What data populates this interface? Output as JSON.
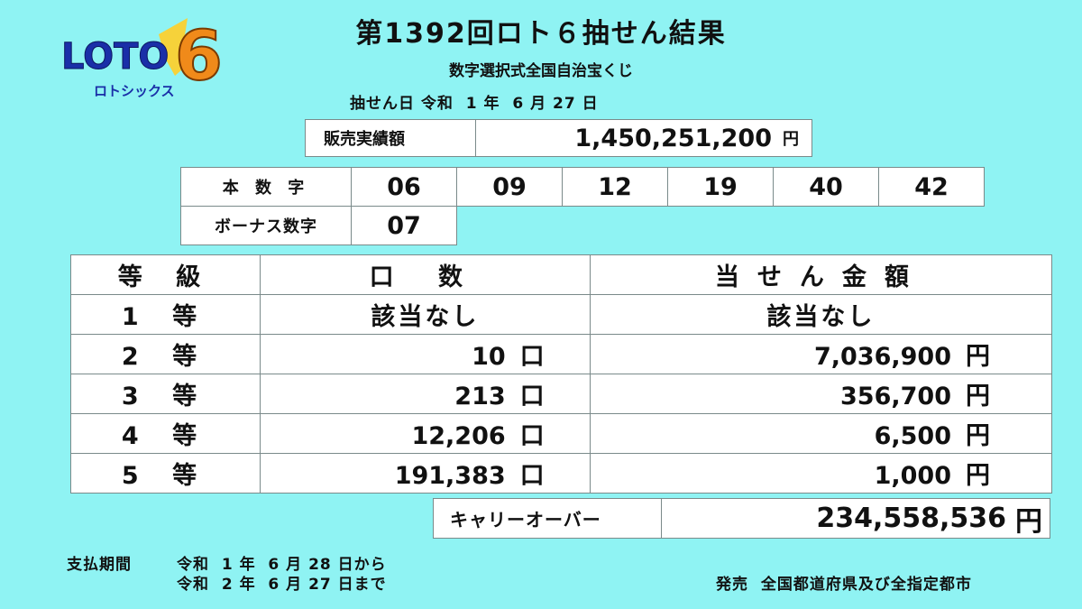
{
  "logo": {
    "main": "LOTO",
    "number": "6",
    "kana": "ロトシックス"
  },
  "header": {
    "title": "第1392回ロト６抽せん結果",
    "subtitle": "数字選択式全国自治宝くじ",
    "draw_date": "抽せん日 令和  1 年  6 月 27 日"
  },
  "sales": {
    "label": "販売実績額",
    "value": "1,450,251,200",
    "unit": "円"
  },
  "main_numbers": {
    "label": "本 数 字",
    "values": [
      "06",
      "09",
      "12",
      "19",
      "40",
      "42"
    ]
  },
  "bonus": {
    "label": "ボーナス数字",
    "value": "07"
  },
  "prize_table": {
    "headers": [
      "等 級",
      "口 数",
      "当せん金額"
    ],
    "rows": [
      {
        "grade": "1 等",
        "winners": "該当なし",
        "winners_unit": "",
        "amount": "該当なし",
        "amount_unit": ""
      },
      {
        "grade": "2 等",
        "winners": "10",
        "winners_unit": "口",
        "amount": "7,036,900",
        "amount_unit": "円"
      },
      {
        "grade": "3 等",
        "winners": "213",
        "winners_unit": "口",
        "amount": "356,700",
        "amount_unit": "円"
      },
      {
        "grade": "4 等",
        "winners": "12,206",
        "winners_unit": "口",
        "amount": "6,500",
        "amount_unit": "円"
      },
      {
        "grade": "5 等",
        "winners": "191,383",
        "winners_unit": "口",
        "amount": "1,000",
        "amount_unit": "円"
      }
    ]
  },
  "carryover": {
    "label": "キャリーオーバー",
    "value": "234,558,536",
    "unit": "円"
  },
  "footer": {
    "payment_label": "支払期間",
    "payment_from": "令和  1 年  6 月 28 日から",
    "payment_to": "令和  2 年  6 月 27 日まで",
    "issuer": "発売  全国都道府県及び全指定都市"
  },
  "colors": {
    "background": "#8ff3f3",
    "logo_blue": "#1a2fa8",
    "logo_orange": "#f08a1a",
    "logo_yellow": "#f6d23a"
  }
}
